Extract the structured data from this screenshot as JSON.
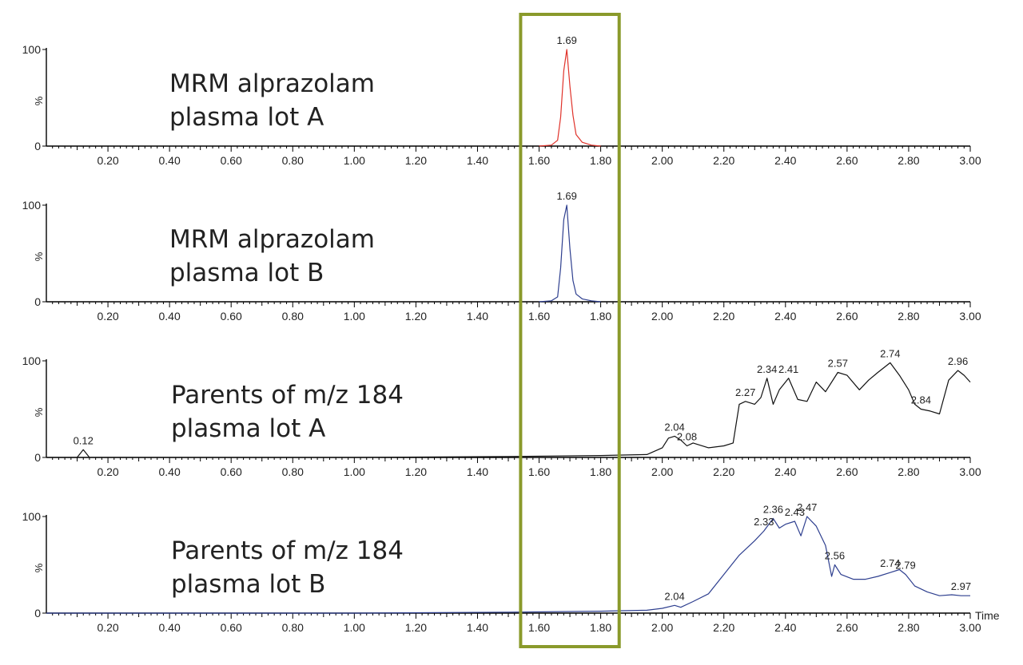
{
  "chart_data": [
    {
      "type": "line",
      "title_lines": [
        "MRM alprazolam",
        "plasma lot A"
      ],
      "color": "#e0322a",
      "ylabel": "%",
      "ylim": [
        0,
        100
      ],
      "y_ticks": [
        "0",
        "100"
      ],
      "xlim": [
        0,
        3.0
      ],
      "x_ticks": [
        "0.20",
        "0.40",
        "0.60",
        "0.80",
        "1.00",
        "1.20",
        "1.40",
        "1.60",
        "1.80",
        "2.00",
        "2.20",
        "2.40",
        "2.60",
        "2.80",
        "3.00"
      ],
      "xlabel": "",
      "series": [
        {
          "x": [
            1.6,
            1.64,
            1.66,
            1.67,
            1.68,
            1.69,
            1.7,
            1.71,
            1.72,
            1.74,
            1.77,
            1.8
          ],
          "y": [
            0,
            1,
            6,
            30,
            78,
            100,
            62,
            32,
            12,
            4,
            1,
            0
          ]
        }
      ],
      "annotations": [
        {
          "x": 1.69,
          "y": 100,
          "text": "1.69"
        }
      ]
    },
    {
      "type": "line",
      "title_lines": [
        "MRM alprazolam",
        "plasma lot B"
      ],
      "color": "#2e3f8f",
      "ylabel": "%",
      "ylim": [
        0,
        100
      ],
      "y_ticks": [
        "0",
        "100"
      ],
      "xlim": [
        0,
        3.0
      ],
      "x_ticks": [
        "0.20",
        "0.40",
        "0.60",
        "0.80",
        "1.00",
        "1.20",
        "1.40",
        "1.60",
        "1.80",
        "2.00",
        "2.20",
        "2.40",
        "2.60",
        "2.80",
        "3.00"
      ],
      "xlabel": "",
      "series": [
        {
          "x": [
            1.6,
            1.64,
            1.66,
            1.67,
            1.68,
            1.69,
            1.7,
            1.71,
            1.72,
            1.74,
            1.77,
            1.8
          ],
          "y": [
            0,
            1,
            5,
            35,
            85,
            100,
            55,
            22,
            8,
            3,
            1,
            0
          ]
        }
      ],
      "annotations": [
        {
          "x": 1.69,
          "y": 100,
          "text": "1.69"
        }
      ]
    },
    {
      "type": "line",
      "title_lines": [
        "Parents of m/z 184",
        "plasma lot A"
      ],
      "color": "#111111",
      "ylabel": "%",
      "ylim": [
        0,
        100
      ],
      "y_ticks": [
        "0",
        "100"
      ],
      "xlim": [
        0,
        3.0
      ],
      "x_ticks": [
        "0.20",
        "0.40",
        "0.60",
        "0.80",
        "1.00",
        "1.20",
        "1.40",
        "1.60",
        "1.80",
        "2.00",
        "2.20",
        "2.40",
        "2.60",
        "2.80",
        "3.00"
      ],
      "xlabel": "",
      "series": [
        {
          "x": [
            0.0,
            0.1,
            0.12,
            0.14,
            0.3,
            1.0,
            1.5,
            1.8,
            1.95,
            2.0,
            2.02,
            2.04,
            2.06,
            2.08,
            2.1,
            2.15,
            2.2,
            2.23,
            2.25,
            2.27,
            2.3,
            2.32,
            2.34,
            2.36,
            2.38,
            2.41,
            2.44,
            2.47,
            2.5,
            2.53,
            2.57,
            2.6,
            2.64,
            2.67,
            2.7,
            2.74,
            2.77,
            2.8,
            2.82,
            2.84,
            2.87,
            2.9,
            2.93,
            2.96,
            2.98,
            3.0
          ],
          "y": [
            0,
            0,
            8,
            0,
            0,
            0,
            1,
            2,
            3,
            10,
            20,
            22,
            18,
            12,
            15,
            10,
            12,
            15,
            55,
            58,
            55,
            62,
            82,
            55,
            70,
            82,
            60,
            58,
            78,
            68,
            88,
            85,
            70,
            80,
            88,
            98,
            85,
            70,
            55,
            50,
            48,
            45,
            80,
            90,
            85,
            78
          ]
        }
      ],
      "annotations": [
        {
          "x": 0.12,
          "y": 8,
          "text": "0.12"
        },
        {
          "x": 2.04,
          "y": 22,
          "text": "2.04"
        },
        {
          "x": 2.08,
          "y": 12,
          "text": "2.08"
        },
        {
          "x": 2.27,
          "y": 58,
          "text": "2.27"
        },
        {
          "x": 2.34,
          "y": 82,
          "text": "2.34"
        },
        {
          "x": 2.41,
          "y": 82,
          "text": "2.41"
        },
        {
          "x": 2.57,
          "y": 88,
          "text": "2.57"
        },
        {
          "x": 2.74,
          "y": 98,
          "text": "2.74"
        },
        {
          "x": 2.84,
          "y": 50,
          "text": "2.84"
        },
        {
          "x": 2.96,
          "y": 90,
          "text": "2.96"
        }
      ]
    },
    {
      "type": "line",
      "title_lines": [
        "Parents of m/z 184",
        "plasma lot B"
      ],
      "color": "#2e3f8f",
      "ylabel": "%",
      "ylim": [
        0,
        100
      ],
      "y_ticks": [
        "0",
        "100"
      ],
      "xlim": [
        0,
        3.0
      ],
      "x_ticks": [
        "0.20",
        "0.40",
        "0.60",
        "0.80",
        "1.00",
        "1.20",
        "1.40",
        "1.60",
        "1.80",
        "2.00",
        "2.20",
        "2.40",
        "2.60",
        "2.80",
        "3.00"
      ],
      "xlabel": "Time",
      "series": [
        {
          "x": [
            0.0,
            0.5,
            1.0,
            1.5,
            1.8,
            1.95,
            2.0,
            2.04,
            2.06,
            2.1,
            2.15,
            2.2,
            2.25,
            2.3,
            2.33,
            2.36,
            2.38,
            2.4,
            2.43,
            2.45,
            2.47,
            2.5,
            2.53,
            2.55,
            2.56,
            2.58,
            2.62,
            2.66,
            2.7,
            2.74,
            2.77,
            2.79,
            2.82,
            2.86,
            2.9,
            2.94,
            2.97,
            3.0
          ],
          "y": [
            0,
            0,
            0,
            1,
            2,
            3,
            5,
            8,
            6,
            12,
            20,
            40,
            60,
            75,
            85,
            98,
            88,
            92,
            95,
            80,
            100,
            90,
            70,
            38,
            50,
            40,
            35,
            35,
            38,
            42,
            45,
            40,
            28,
            22,
            18,
            19,
            18,
            18
          ]
        }
      ],
      "annotations": [
        {
          "x": 2.04,
          "y": 8,
          "text": "2.04"
        },
        {
          "x": 2.33,
          "y": 85,
          "text": "2.33"
        },
        {
          "x": 2.36,
          "y": 98,
          "text": "2.36"
        },
        {
          "x": 2.43,
          "y": 95,
          "text": "2.43"
        },
        {
          "x": 2.47,
          "y": 100,
          "text": "2.47"
        },
        {
          "x": 2.56,
          "y": 50,
          "text": "2.56"
        },
        {
          "x": 2.74,
          "y": 42,
          "text": "2.74"
        },
        {
          "x": 2.79,
          "y": 40,
          "text": "2.79"
        },
        {
          "x": 2.97,
          "y": 18,
          "text": "2.97"
        }
      ]
    }
  ],
  "highlight": {
    "x_range": [
      1.54,
      1.86
    ],
    "color": "#8a9a2b"
  }
}
